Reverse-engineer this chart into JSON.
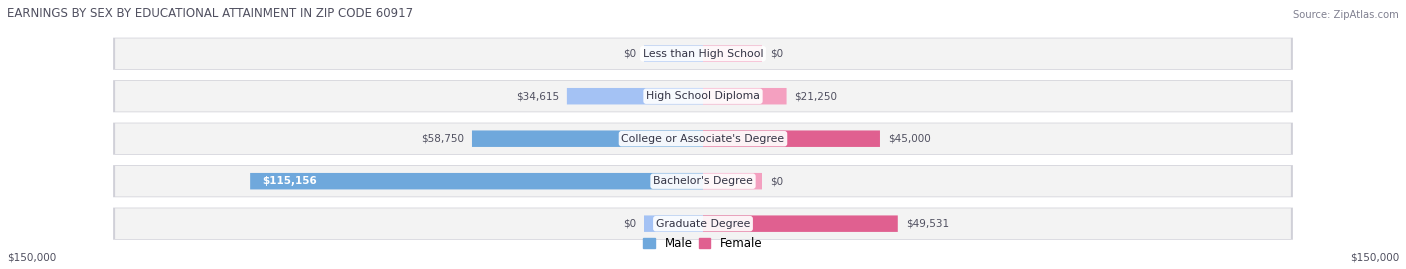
{
  "title": "EARNINGS BY SEX BY EDUCATIONAL ATTAINMENT IN ZIP CODE 60917",
  "source": "Source: ZipAtlas.com",
  "categories": [
    "Less than High School",
    "High School Diploma",
    "College or Associate's Degree",
    "Bachelor's Degree",
    "Graduate Degree"
  ],
  "male_values": [
    0,
    34615,
    58750,
    115156,
    0
  ],
  "female_values": [
    0,
    21250,
    45000,
    0,
    49531
  ],
  "male_labels": [
    "$0",
    "$34,615",
    "$58,750",
    "$115,156",
    "$0"
  ],
  "female_labels": [
    "$0",
    "$21,250",
    "$45,000",
    "$0",
    "$49,531"
  ],
  "male_color_strong": "#6fa8dc",
  "male_color_light": "#a4c2f4",
  "female_color_strong": "#e06090",
  "female_color_light": "#f4a0c0",
  "stub_value": 15000,
  "max_value": 150000,
  "x_label_left": "$150,000",
  "x_label_right": "$150,000",
  "row_bg_color": "#f3f3f3",
  "row_border_color": "#d0d0d8",
  "background_color": "#ffffff",
  "title_color": "#505060",
  "source_color": "#808090",
  "label_color": "#505060",
  "white_label_color": "#ffffff"
}
